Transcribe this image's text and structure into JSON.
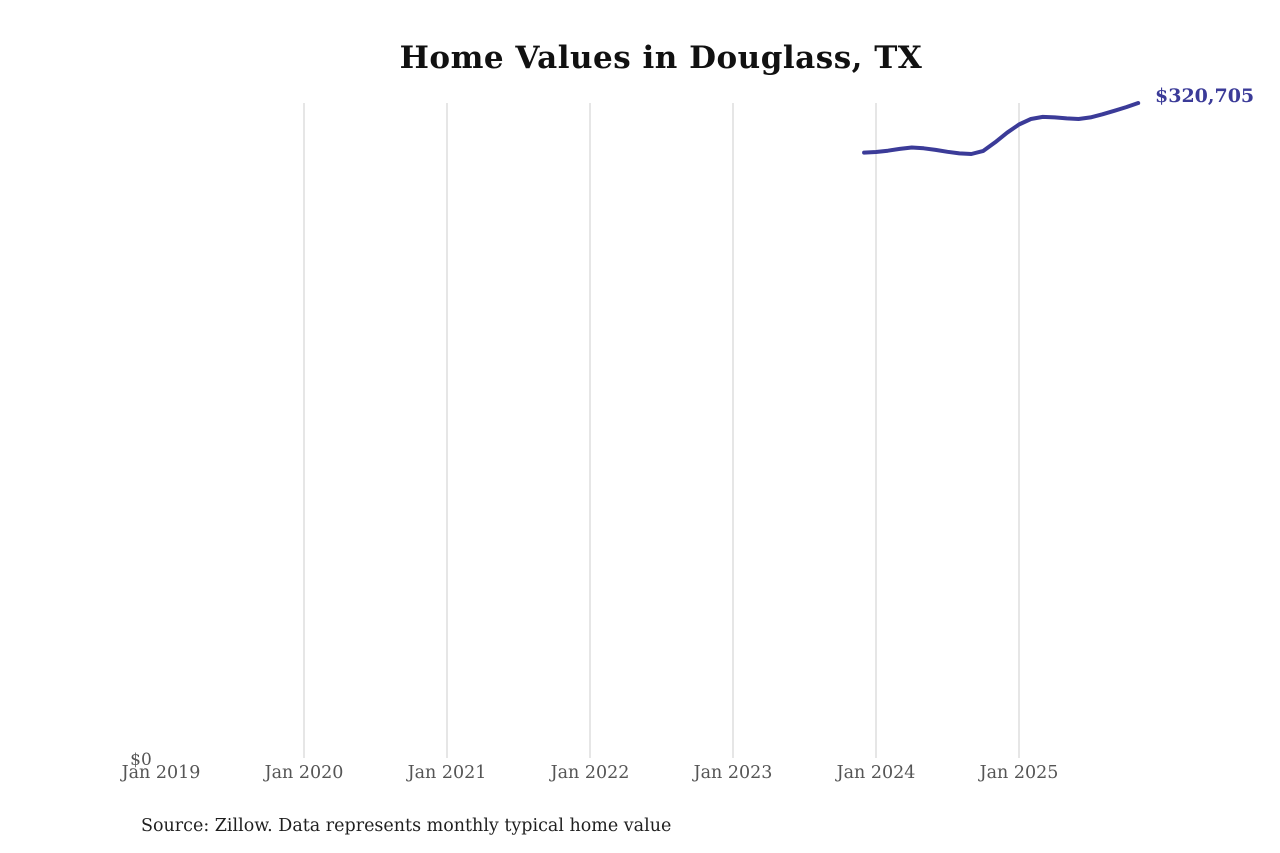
{
  "chart_data": {
    "type": "line",
    "title": "Home Values in Douglass, TX",
    "source": "Source: Zillow. Data represents monthly typical home value",
    "end_label": "$320,705",
    "line_color": "#3b3b98",
    "grid_color": "#cccccc",
    "axis_label_color": "#555555",
    "ylim": [
      0,
      320705
    ],
    "x_ticks": [
      {
        "label": "Jan 2019",
        "date": "2019-01",
        "gridline": false
      },
      {
        "label": "Jan 2020",
        "date": "2020-01",
        "gridline": true
      },
      {
        "label": "Jan 2021",
        "date": "2021-01",
        "gridline": true
      },
      {
        "label": "Jan 2022",
        "date": "2022-01",
        "gridline": true
      },
      {
        "label": "Jan 2023",
        "date": "2023-01",
        "gridline": true
      },
      {
        "label": "Jan 2024",
        "date": "2024-01",
        "gridline": true
      },
      {
        "label": "Jan 2025",
        "date": "2025-01",
        "gridline": true
      }
    ],
    "y_ticks": [
      {
        "label": "$0",
        "value": 0
      }
    ],
    "series": [
      {
        "name": "Typical home value",
        "x": [
          "2023-12",
          "2024-01",
          "2024-02",
          "2024-03",
          "2024-04",
          "2024-05",
          "2024-06",
          "2024-07",
          "2024-08",
          "2024-09",
          "2024-10",
          "2024-11",
          "2024-12",
          "2025-01",
          "2025-02",
          "2025-03",
          "2025-04",
          "2025-05",
          "2025-06",
          "2025-07",
          "2025-08",
          "2025-09",
          "2025-10",
          "2025-11"
        ],
        "values": [
          296500,
          296800,
          297400,
          298300,
          299000,
          298600,
          297800,
          296900,
          296100,
          295800,
          297300,
          301500,
          306200,
          310200,
          312900,
          313900,
          313700,
          313200,
          312900,
          313700,
          315200,
          316900,
          318700,
          320705
        ]
      }
    ]
  }
}
